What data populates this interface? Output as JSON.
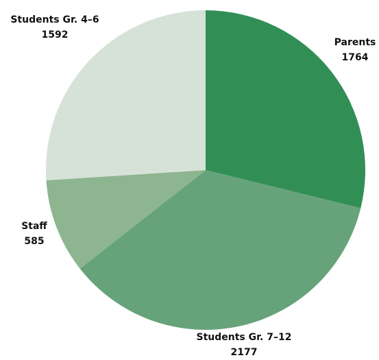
{
  "chart_data": {
    "type": "pie",
    "categories": [
      "Parents",
      "Students Gr. 7–12",
      "Staff",
      "Students Gr. 4–6"
    ],
    "values": [
      1764,
      2177,
      585,
      1592
    ],
    "colors": [
      "#318f56",
      "#67a37a",
      "#8db590",
      "#d6e2d8"
    ]
  }
}
